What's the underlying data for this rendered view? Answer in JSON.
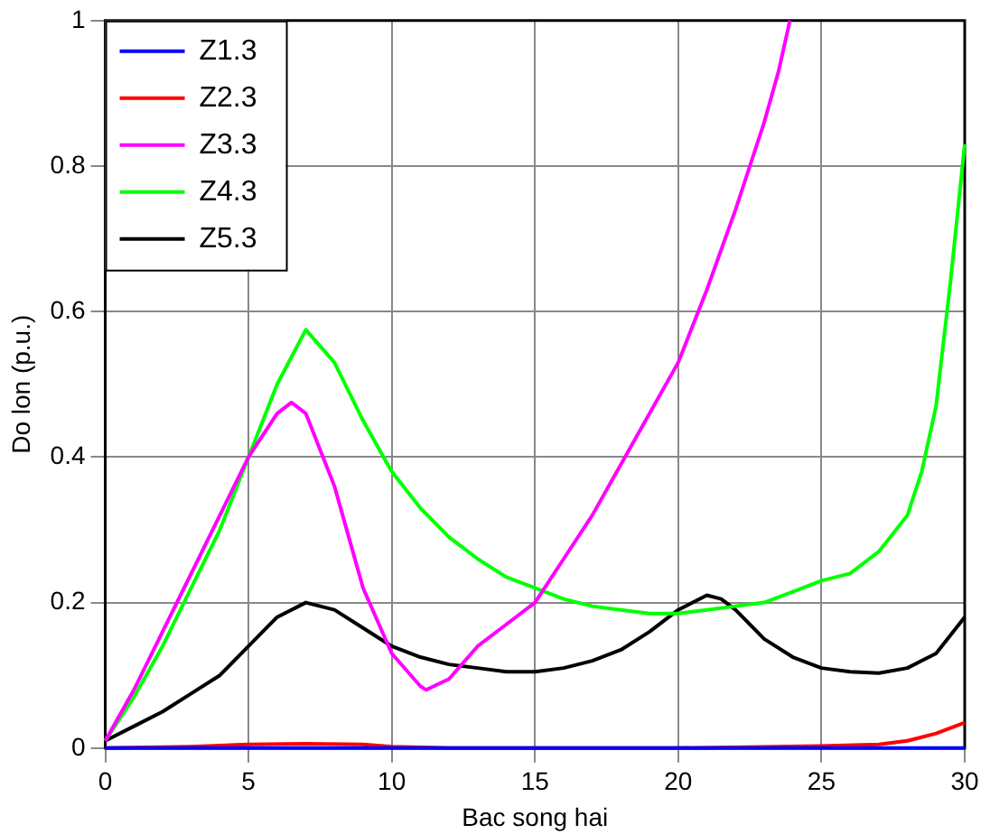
{
  "chart_data": {
    "type": "line",
    "xlabel": "Bac song hai",
    "ylabel": "Do lon (p.u.)",
    "xlim": [
      0,
      30
    ],
    "ylim": [
      0,
      1
    ],
    "xticks": [
      0,
      5,
      10,
      15,
      20,
      25,
      30
    ],
    "yticks": [
      0,
      0.2,
      0.4,
      0.6,
      0.8,
      {
        "value": 1,
        "label": "1"
      }
    ],
    "grid": true,
    "legend": "top left",
    "marker": "none",
    "line_style": "solid",
    "series": [
      {
        "name": "Z1.3",
        "color": "#0000ff",
        "x": [
          0,
          5,
          10,
          15,
          20,
          25,
          30
        ],
        "values": [
          0,
          0,
          0,
          0,
          0,
          0,
          0
        ]
      },
      {
        "name": "Z2.3",
        "color": "#ff0000",
        "x": [
          0,
          3,
          5,
          7,
          9,
          10,
          12,
          20,
          25,
          27,
          28,
          29,
          30
        ],
        "values": [
          0,
          0.002,
          0.005,
          0.006,
          0.005,
          0.002,
          0,
          0,
          0.003,
          0.005,
          0.01,
          0.02,
          0.035
        ]
      },
      {
        "name": "Z3.3",
        "color": "#ff00ff",
        "x": [
          0,
          1,
          2,
          3,
          4,
          5,
          6,
          6.5,
          7,
          8,
          9,
          10,
          11,
          11.2,
          12,
          13,
          14,
          15,
          16,
          17,
          18,
          19,
          20,
          21,
          22,
          22.5,
          23,
          23.5,
          23.9
        ],
        "values": [
          0.01,
          0.08,
          0.16,
          0.24,
          0.32,
          0.4,
          0.46,
          0.475,
          0.46,
          0.36,
          0.22,
          0.13,
          0.085,
          0.08,
          0.095,
          0.14,
          0.17,
          0.2,
          0.26,
          0.32,
          0.39,
          0.46,
          0.53,
          0.63,
          0.74,
          0.8,
          0.86,
          0.93,
          1
        ]
      },
      {
        "name": "Z4.3",
        "color": "#00ff00",
        "x": [
          0,
          1,
          2,
          3,
          4,
          5,
          6,
          7,
          8,
          9,
          10,
          11,
          12,
          13,
          14,
          15,
          16,
          17,
          18,
          19,
          20,
          21,
          22,
          23,
          24,
          25,
          26,
          27,
          28,
          28.5,
          29,
          29.5,
          30
        ],
        "values": [
          0.01,
          0.07,
          0.14,
          0.22,
          0.3,
          0.4,
          0.5,
          0.575,
          0.53,
          0.45,
          0.38,
          0.33,
          0.29,
          0.26,
          0.235,
          0.22,
          0.205,
          0.195,
          0.19,
          0.185,
          0.185,
          0.19,
          0.195,
          0.2,
          0.215,
          0.23,
          0.24,
          0.27,
          0.32,
          0.38,
          0.47,
          0.64,
          0.83
        ]
      },
      {
        "name": "Z5.3",
        "color": "#000000",
        "x": [
          0,
          1,
          2,
          3,
          4,
          5,
          6,
          7,
          8,
          9,
          10,
          11,
          12,
          13,
          14,
          15,
          16,
          17,
          18,
          19,
          20,
          21,
          21.5,
          22,
          23,
          24,
          25,
          26,
          27,
          28,
          29,
          30
        ],
        "values": [
          0.01,
          0.03,
          0.05,
          0.075,
          0.1,
          0.14,
          0.18,
          0.2,
          0.19,
          0.165,
          0.14,
          0.125,
          0.115,
          0.11,
          0.105,
          0.105,
          0.11,
          0.12,
          0.135,
          0.16,
          0.19,
          0.21,
          0.205,
          0.19,
          0.15,
          0.125,
          0.11,
          0.105,
          0.103,
          0.11,
          0.13,
          0.18
        ]
      }
    ]
  }
}
